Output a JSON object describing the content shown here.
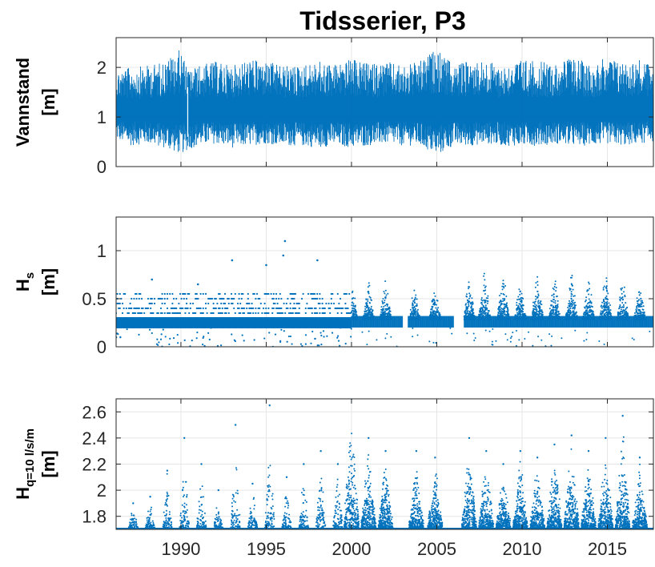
{
  "figure_title": "Tidsserier, P3",
  "chart_data": [
    {
      "id": "vannstand",
      "type": "line",
      "ylabel": "Vannstand",
      "ylabel_unit": "[m]",
      "xlim": [
        1986.2,
        2017.7
      ],
      "ylim": [
        0,
        2.6
      ],
      "yticks": [
        0,
        1,
        2
      ],
      "ytick_labels": [
        "0",
        "1",
        "2"
      ],
      "xticks": [
        1990,
        1995,
        2000,
        2005,
        2010,
        2015
      ],
      "xtick_labels": [
        "1990",
        "1995",
        "2000",
        "2005",
        "2010",
        "2015"
      ],
      "show_xtick_labels": false,
      "grid": true,
      "color": "#0072bd",
      "series": [
        {
          "x": [
            1986.2,
            1987,
            1988,
            1989,
            1990,
            1990.4,
            1991,
            1992,
            1993,
            1994,
            1995,
            1996,
            1997,
            1998,
            1999,
            2000,
            2001,
            2002,
            2003,
            2004,
            2005,
            2006,
            2007,
            2008,
            2009,
            2010,
            2011,
            2012,
            2013,
            2014,
            2015,
            2016,
            2017,
            2017.7
          ],
          "y_min": [
            0.45,
            0.3,
            0.35,
            0.25,
            0.1,
            0.2,
            0.3,
            0.35,
            0.25,
            0.3,
            0.35,
            0.3,
            0.3,
            0.25,
            0.3,
            0.25,
            0.3,
            0.35,
            0.3,
            0.3,
            0.05,
            0.3,
            0.3,
            0.35,
            0.3,
            0.3,
            0.3,
            0.35,
            0.3,
            0.3,
            0.35,
            0.3,
            0.35,
            0.4
          ],
          "y_max": [
            2.1,
            2.15,
            2.2,
            2.3,
            2.6,
            2.1,
            2.2,
            2.3,
            2.2,
            2.35,
            2.3,
            2.2,
            2.2,
            2.3,
            2.25,
            2.35,
            2.25,
            2.3,
            2.2,
            2.3,
            2.6,
            2.2,
            2.35,
            2.3,
            2.2,
            2.35,
            2.3,
            2.25,
            2.4,
            2.25,
            2.4,
            2.3,
            2.35,
            2.2
          ]
        }
      ]
    },
    {
      "id": "hs",
      "type": "scatter",
      "ylabel": "H",
      "ylabel_sub": "s",
      "ylabel_unit": "[m]",
      "xlim": [
        1986.2,
        2017.7
      ],
      "ylim": [
        0,
        1.35
      ],
      "yticks": [
        0,
        0.5,
        1
      ],
      "ytick_labels": [
        "0",
        "0.5",
        "1"
      ],
      "xticks": [
        1990,
        1995,
        2000,
        2005,
        2010,
        2015
      ],
      "xtick_labels": [
        "1990",
        "1995",
        "2000",
        "2005",
        "2010",
        "2015"
      ],
      "show_xtick_labels": false,
      "grid": true,
      "color": "#0072bd",
      "series": [
        {
          "name": "",
          "levels_pre_2000": [
            0.2,
            0.25,
            0.3,
            0.35,
            0.4,
            0.45,
            0.5,
            0.55
          ],
          "outliers": [
            {
              "x": 1988.3,
              "y": 0.7
            },
            {
              "x": 1991.0,
              "y": 0.65
            },
            {
              "x": 1993.0,
              "y": 0.9
            },
            {
              "x": 1995.0,
              "y": 0.85
            },
            {
              "x": 1996.0,
              "y": 0.95
            },
            {
              "x": 1996.1,
              "y": 1.1
            },
            {
              "x": 1998.0,
              "y": 0.9
            }
          ],
          "clusters": [
            {
              "x": 2000.0,
              "peak": 0.85
            },
            {
              "x": 2001.0,
              "peak": 0.75
            },
            {
              "x": 2002.0,
              "peak": 0.8
            },
            {
              "x": 2003.7,
              "peak": 0.7
            },
            {
              "x": 2004.9,
              "peak": 0.75
            },
            {
              "x": 2006.9,
              "peak": 0.8
            },
            {
              "x": 2007.8,
              "peak": 0.85
            },
            {
              "x": 2008.9,
              "peak": 0.9
            },
            {
              "x": 2009.9,
              "peak": 0.8
            },
            {
              "x": 2010.9,
              "peak": 0.85
            },
            {
              "x": 2011.9,
              "peak": 0.8
            },
            {
              "x": 2012.9,
              "peak": 0.85
            },
            {
              "x": 2013.9,
              "peak": 0.8
            },
            {
              "x": 2014.9,
              "peak": 0.85
            },
            {
              "x": 2015.9,
              "peak": 0.8
            },
            {
              "x": 2016.9,
              "peak": 0.75
            }
          ],
          "gaps": [
            [
              2003.0,
              2003.3
            ],
            [
              2006.0,
              2006.6
            ]
          ]
        }
      ]
    },
    {
      "id": "hq",
      "type": "scatter",
      "ylabel": "H",
      "ylabel_sub": "q=10 l/s/m",
      "ylabel_unit": "[m]",
      "xlim": [
        1986.2,
        2017.7
      ],
      "ylim": [
        1.7,
        2.7
      ],
      "yticks": [
        1.8,
        2,
        2.2,
        2.4,
        2.6
      ],
      "ytick_labels": [
        "1.8",
        "2",
        "2.2",
        "2.4",
        "2.6"
      ],
      "xticks": [
        1990,
        1995,
        2000,
        2005,
        2010,
        2015
      ],
      "xtick_labels": [
        "1990",
        "1995",
        "2000",
        "2005",
        "2010",
        "2015"
      ],
      "show_xtick_labels": true,
      "grid": true,
      "color": "#0072bd",
      "series": [
        {
          "name": "",
          "baseline": 1.7,
          "clusters": [
            {
              "x": 1987.2,
              "peak": 1.9
            },
            {
              "x": 1988.2,
              "peak": 1.95
            },
            {
              "x": 1989.2,
              "peak": 2.15
            },
            {
              "x": 1990.2,
              "peak": 2.4
            },
            {
              "x": 1991.2,
              "peak": 2.2
            },
            {
              "x": 1992.2,
              "peak": 2.0
            },
            {
              "x": 1993.2,
              "peak": 2.5
            },
            {
              "x": 1994.2,
              "peak": 2.05
            },
            {
              "x": 1995.2,
              "peak": 2.65
            },
            {
              "x": 1996.2,
              "peak": 2.1
            },
            {
              "x": 1997.2,
              "peak": 2.2
            },
            {
              "x": 1998.2,
              "peak": 2.3
            },
            {
              "x": 1999.2,
              "peak": 2.2
            },
            {
              "x": 2000.0,
              "peak": 2.7
            },
            {
              "x": 2001.0,
              "peak": 2.4
            },
            {
              "x": 2002.0,
              "peak": 2.3
            },
            {
              "x": 2003.8,
              "peak": 2.3
            },
            {
              "x": 2004.9,
              "peak": 2.25
            },
            {
              "x": 2006.9,
              "peak": 2.4
            },
            {
              "x": 2007.9,
              "peak": 2.3
            },
            {
              "x": 2008.9,
              "peak": 2.2
            },
            {
              "x": 2009.9,
              "peak": 2.3
            },
            {
              "x": 2010.9,
              "peak": 2.25
            },
            {
              "x": 2011.9,
              "peak": 2.35
            },
            {
              "x": 2012.9,
              "peak": 2.42
            },
            {
              "x": 2013.9,
              "peak": 2.3
            },
            {
              "x": 2014.9,
              "peak": 2.4
            },
            {
              "x": 2015.9,
              "peak": 2.57
            },
            {
              "x": 2016.9,
              "peak": 2.25
            }
          ]
        }
      ]
    }
  ]
}
